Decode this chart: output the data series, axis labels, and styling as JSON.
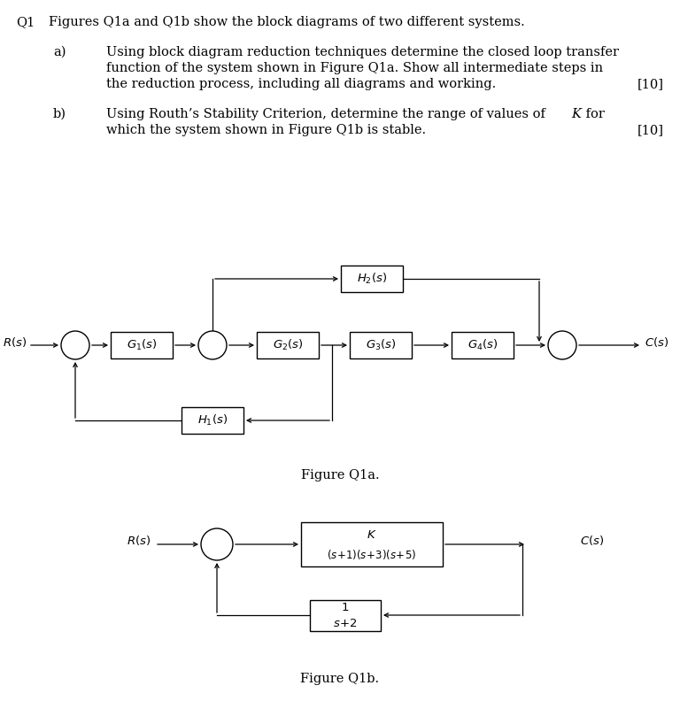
{
  "bg_color": "#ffffff",
  "fig_size": [
    7.68,
    7.92
  ],
  "dpi": 100,
  "title_q1": "Q1",
  "intro_text": "Figures Q1a and Q1b show the block diagrams of two different systems.",
  "part_a_label": "a)",
  "part_a_line1": "Using block diagram reduction techniques determine the closed loop transfer",
  "part_a_line2": "function of the system shown in Figure Q1a. Show all intermediate steps in",
  "part_a_line3": "the reduction process, including all diagrams and working.",
  "part_a_marks": "[10]",
  "part_b_label": "b)",
  "part_b_line1": "Using Routh’s Stability Criterion, determine the range of values of ",
  "part_b_K": "K",
  "part_b_line1b": " for",
  "part_b_line2": "which the system shown in Figure Q1b is stable.",
  "part_b_marks": "[10]",
  "fig_q1a_label": "Figure Q1a.",
  "fig_q1b_label": "Figure Q1b."
}
